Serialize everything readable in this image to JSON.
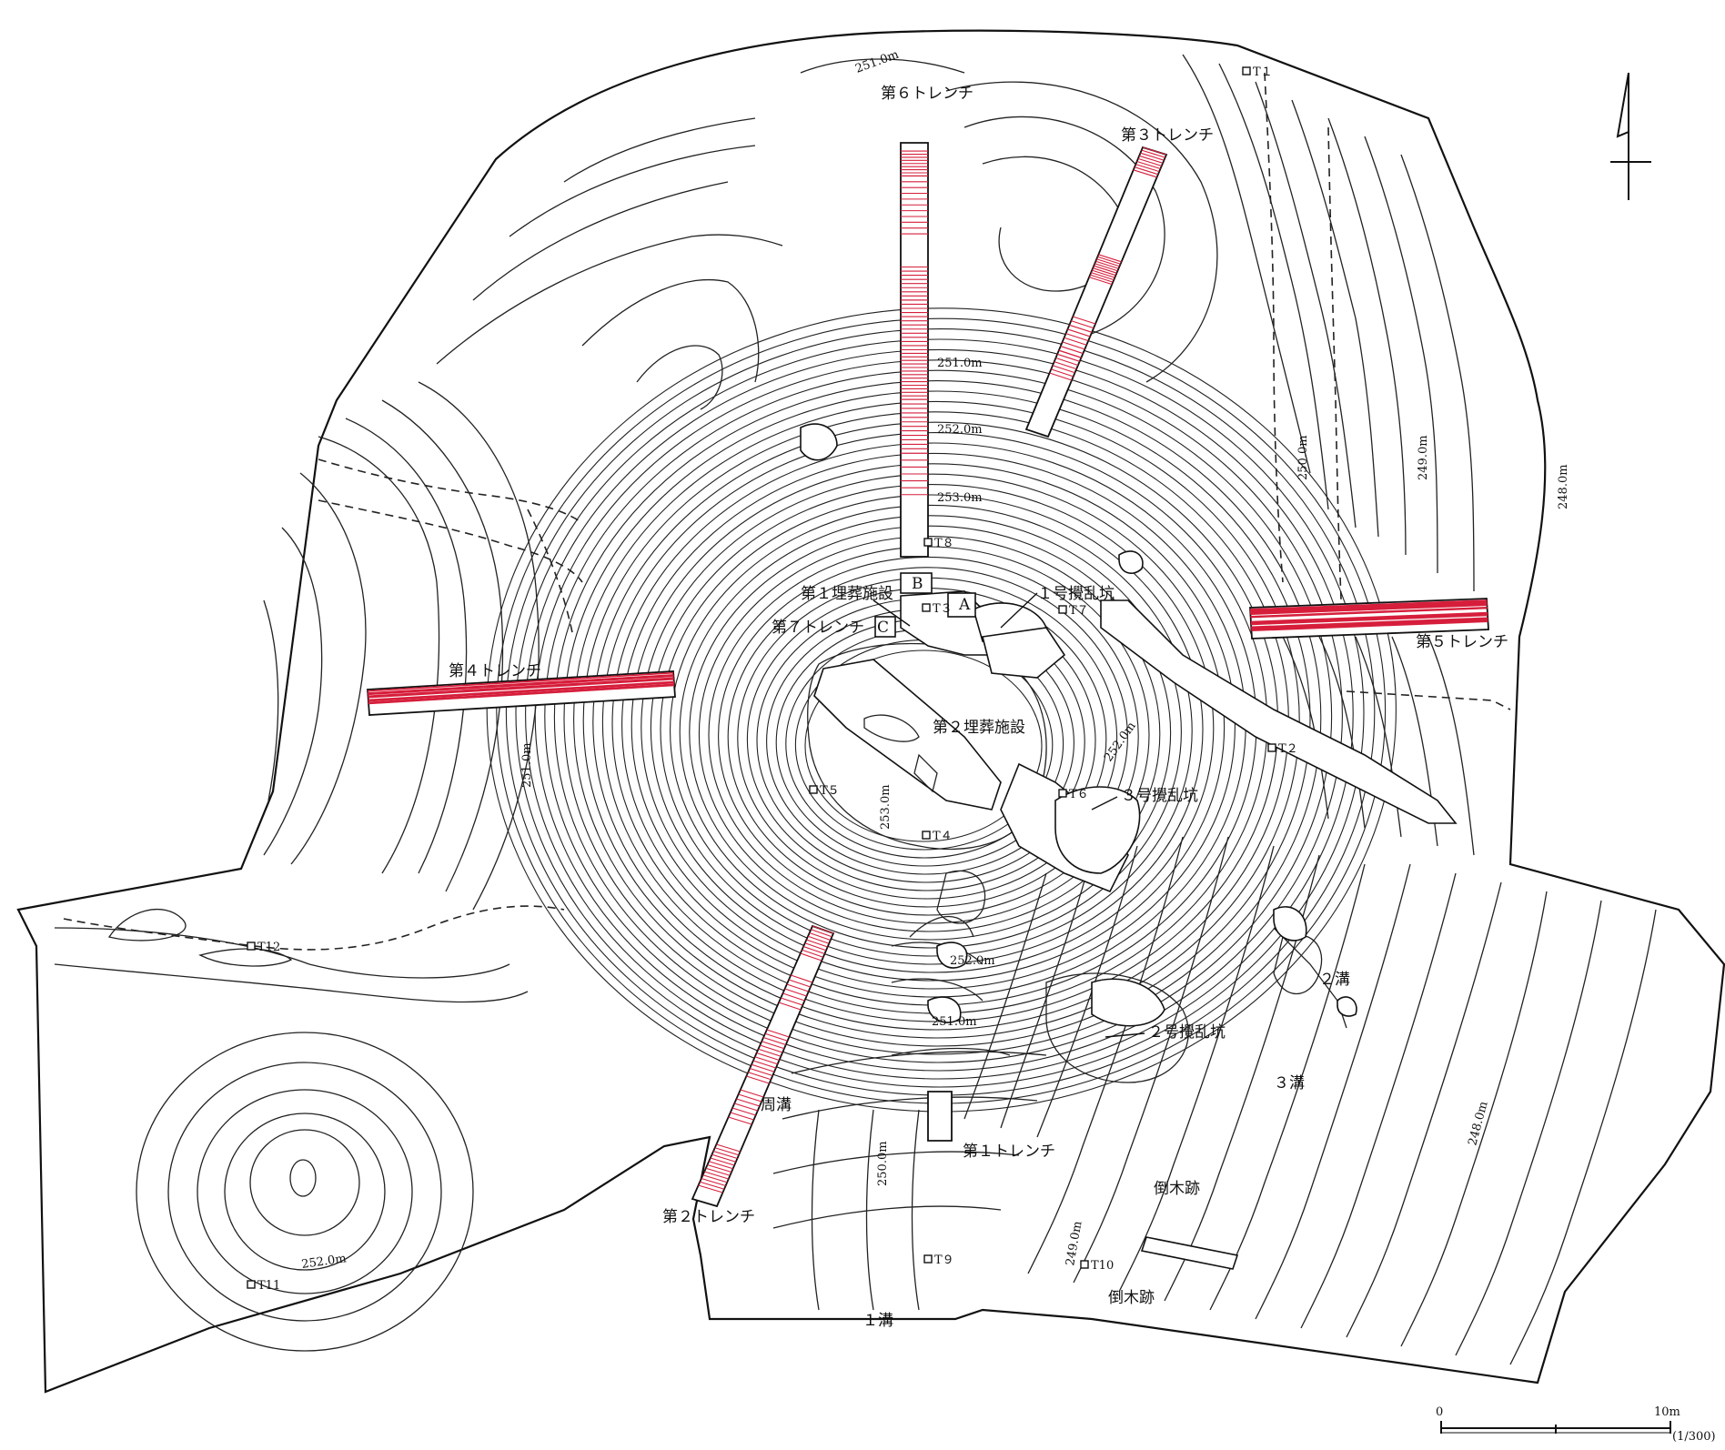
{
  "labels": {
    "trench_6": "第６トレンチ",
    "trench_3": "第３トレンチ",
    "trench_4": "第４トレンチ",
    "trench_5": "第５トレンチ",
    "trench_7": "第７トレンチ",
    "trench_2": "第２トレンチ",
    "trench_1": "第１トレンチ",
    "burial_1": "第１埋葬施設",
    "burial_2": "第２埋葬施設",
    "disturbed_1": "１号攪乱坑",
    "disturbed_2": "２号攪乱坑",
    "disturbed_3": "３号攪乱坑",
    "moat": "周溝",
    "ditch_1": "１溝",
    "ditch_2": "２溝",
    "ditch_3": "３溝",
    "fallen_tree_1": "倒木跡",
    "fallen_tree_2": "倒木跡",
    "sec_a": "A",
    "sec_b": "B",
    "sec_c": "C"
  },
  "elevations": {
    "e251_top": "251.0m",
    "e251_n": "251.0m",
    "e252_n": "252.0m",
    "e253_n": "253.0m",
    "e250_e": "250.0m",
    "e249_e": "249.0m",
    "e248_e": "248.0m",
    "e251_w": "251.0m",
    "e253_c": "253.0m",
    "e252_se": "252.0m",
    "e252_s": "252.0m",
    "e251_s": "251.0m",
    "e250_s": "250.0m",
    "e249_s": "249.0m",
    "e248_se": "248.0m",
    "e252_sw": "252.0m"
  },
  "points": {
    "t1": "T１",
    "t2": "T２",
    "t3": "T３",
    "t4": "T４",
    "t5": "T５",
    "t6": "T６",
    "t7": "T７",
    "t8": "T８",
    "t9": "T９",
    "t10": "T10",
    "t11": "T11",
    "t12": "T12"
  },
  "scale": {
    "start": "0",
    "end": "10m",
    "ratio": "(1/300)"
  },
  "colors": {
    "hatch": "#d61f3c",
    "line": "#111111"
  }
}
